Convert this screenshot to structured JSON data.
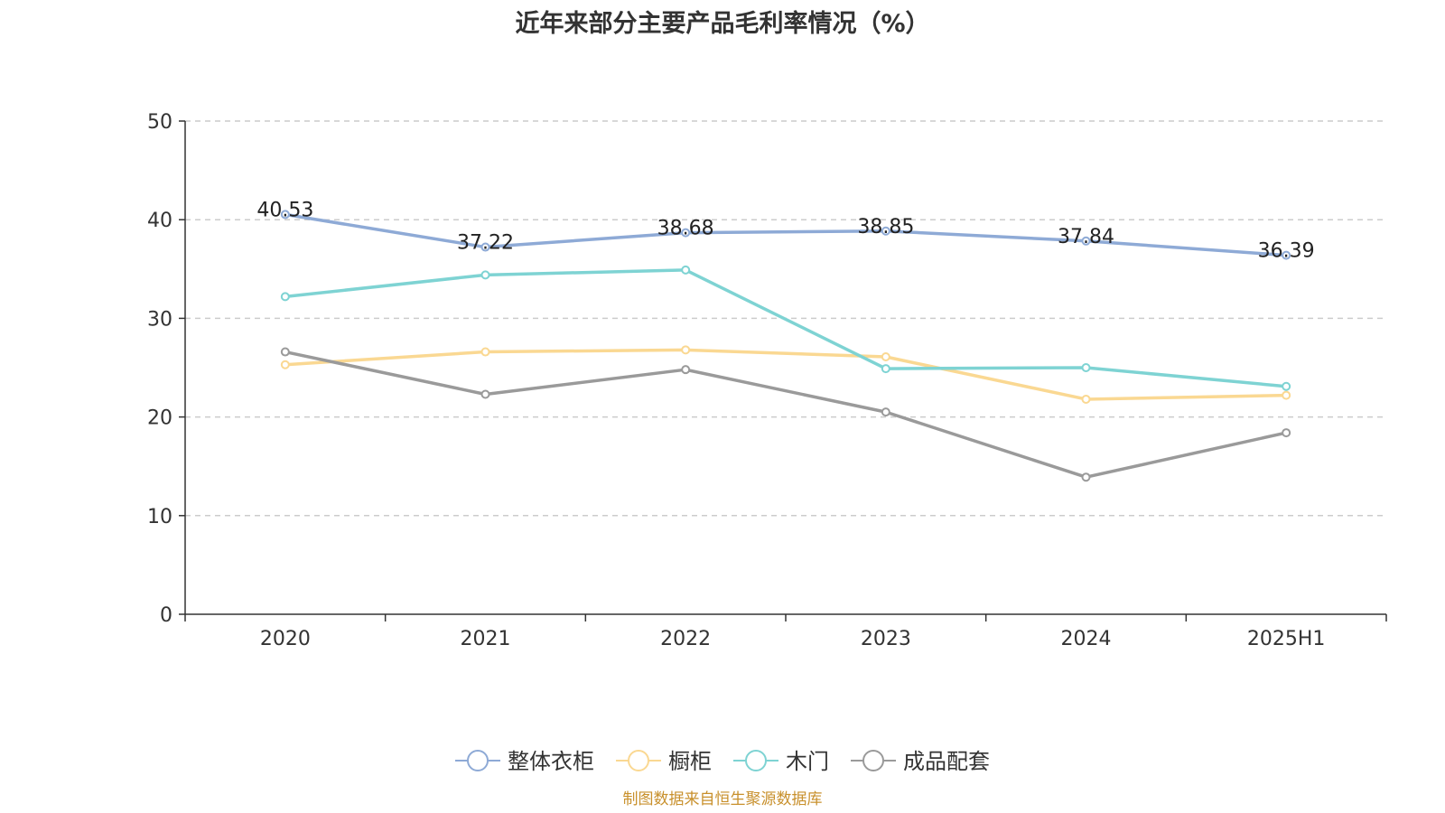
{
  "chart_data": {
    "type": "line",
    "title": "近年来部分主要产品毛利率情况（%）",
    "categories": [
      "2020",
      "2021",
      "2022",
      "2023",
      "2024",
      "2025H1"
    ],
    "ylim": [
      0,
      50
    ],
    "yticks": [
      0,
      10,
      20,
      30,
      40,
      50
    ],
    "grid": true,
    "legend_position": "bottom",
    "series": [
      {
        "name": "整体衣柜",
        "color": "#8eaad6",
        "values": [
          40.53,
          37.22,
          38.68,
          38.85,
          37.84,
          36.39
        ],
        "labels": [
          "40.53",
          "37.22",
          "38.68",
          "38.85",
          "37.84",
          "36.39"
        ]
      },
      {
        "name": "橱柜",
        "color": "#fad892",
        "values": [
          25.3,
          26.6,
          26.8,
          26.1,
          21.8,
          22.2
        ],
        "labels": []
      },
      {
        "name": "木门",
        "color": "#7ed3d3",
        "values": [
          32.2,
          34.4,
          34.9,
          24.9,
          25.0,
          23.1
        ],
        "labels": []
      },
      {
        "name": "成品配套",
        "color": "#9a9a9a",
        "values": [
          26.6,
          22.3,
          24.8,
          20.5,
          13.9,
          18.4
        ],
        "labels": []
      }
    ],
    "source": "制图数据来自恒生聚源数据库"
  }
}
